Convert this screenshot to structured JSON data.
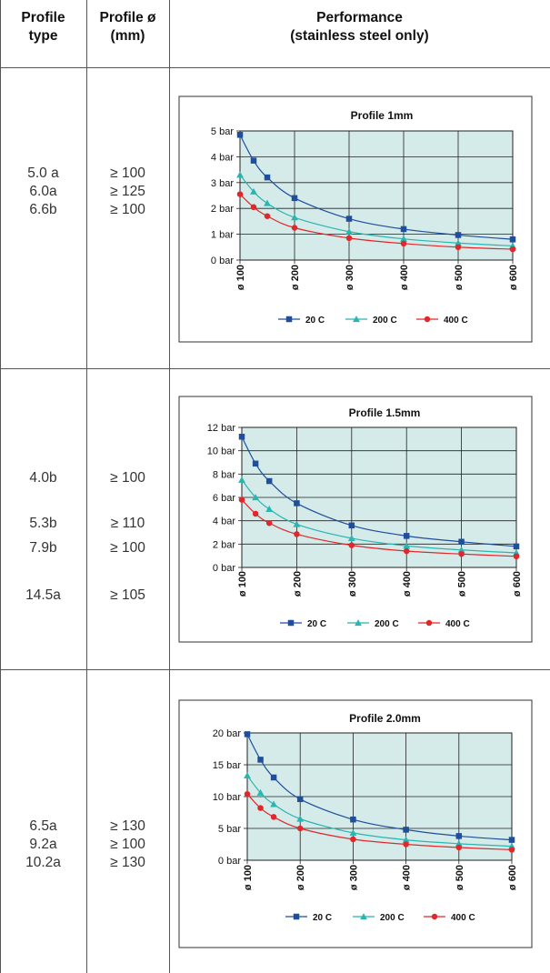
{
  "table": {
    "headers": {
      "profile_type": [
        "Profile",
        "type"
      ],
      "profile_diameter": [
        "Profile ø",
        "(mm)"
      ],
      "performance": [
        "Performance",
        "(stainless steel only)"
      ]
    },
    "rows": [
      {
        "types": [
          "5.0 a",
          "6.0a",
          "6.6b"
        ],
        "diameters": [
          "≥ 100",
          "≥ 125",
          "≥ 100"
        ]
      },
      {
        "types": [
          "4.0b",
          "5.3b",
          "7.9b",
          "14.5a"
        ],
        "diameters": [
          "≥ 100",
          "≥ 110",
          "≥ 100",
          "≥ 105"
        ]
      },
      {
        "types": [
          "6.5a",
          "9.2a",
          "10.2a"
        ],
        "diameters": [
          "≥ 130",
          "≥ 100",
          "≥ 130"
        ]
      }
    ]
  },
  "chart_data": [
    {
      "type": "line",
      "title": "Profile 1mm",
      "x_categories": [
        "ø 100",
        "ø 200",
        "ø 300",
        "ø 400",
        "ø 500",
        "ø 600"
      ],
      "x_range": [
        100,
        600
      ],
      "ylim": [
        0,
        5
      ],
      "y_ticks": [
        0,
        1,
        2,
        3,
        4,
        5
      ],
      "y_tick_labels": [
        "0 bar",
        "1 bar",
        "2 bar",
        "3 bar",
        "4 bar",
        "5 bar"
      ],
      "grid": true,
      "legend_position": "bottom",
      "series": [
        {
          "name": "20 C",
          "color": "#1f4e9c",
          "marker": "square",
          "x": [
            100,
            125,
            150,
            200,
            300,
            400,
            500,
            600
          ],
          "values": [
            4.85,
            3.85,
            3.2,
            2.4,
            1.6,
            1.2,
            0.97,
            0.8
          ]
        },
        {
          "name": "200 C",
          "color": "#2ab5b0",
          "marker": "triangle",
          "x": [
            100,
            125,
            150,
            200,
            300,
            400,
            500,
            600
          ],
          "values": [
            3.3,
            2.65,
            2.2,
            1.65,
            1.1,
            0.82,
            0.66,
            0.55
          ]
        },
        {
          "name": "400 C",
          "color": "#e0282c",
          "marker": "circle",
          "x": [
            100,
            125,
            150,
            200,
            300,
            400,
            500,
            600
          ],
          "values": [
            2.55,
            2.05,
            1.7,
            1.25,
            0.85,
            0.64,
            0.5,
            0.42
          ]
        }
      ]
    },
    {
      "type": "line",
      "title": "Profile 1.5mm",
      "x_categories": [
        "ø 100",
        "ø 200",
        "ø 300",
        "ø 400",
        "ø 500",
        "ø 600"
      ],
      "x_range": [
        100,
        600
      ],
      "ylim": [
        0,
        12
      ],
      "y_ticks": [
        0,
        2,
        4,
        6,
        8,
        10,
        12
      ],
      "y_tick_labels": [
        "0 bar",
        "2 bar",
        "4 bar",
        "6 bar",
        "8 bar",
        "10 bar",
        "12 bar"
      ],
      "grid": true,
      "legend_position": "bottom",
      "series": [
        {
          "name": "20 C",
          "color": "#1f4e9c",
          "marker": "square",
          "x": [
            100,
            125,
            150,
            200,
            300,
            400,
            500,
            600
          ],
          "values": [
            11.2,
            8.9,
            7.4,
            5.5,
            3.6,
            2.7,
            2.2,
            1.8
          ]
        },
        {
          "name": "200 C",
          "color": "#2ab5b0",
          "marker": "triangle",
          "x": [
            100,
            125,
            150,
            200,
            300,
            400,
            500,
            600
          ],
          "values": [
            7.5,
            6.0,
            5.0,
            3.7,
            2.5,
            1.85,
            1.5,
            1.25
          ]
        },
        {
          "name": "400 C",
          "color": "#e0282c",
          "marker": "circle",
          "x": [
            100,
            125,
            150,
            200,
            300,
            400,
            500,
            600
          ],
          "values": [
            5.8,
            4.6,
            3.8,
            2.85,
            1.9,
            1.4,
            1.15,
            0.95
          ]
        }
      ]
    },
    {
      "type": "line",
      "title": "Profile 2.0mm",
      "x_categories": [
        "ø 100",
        "ø 200",
        "ø 300",
        "ø 400",
        "ø 500",
        "ø 600"
      ],
      "x_range": [
        100,
        600
      ],
      "ylim": [
        0,
        20
      ],
      "y_ticks": [
        0,
        5,
        10,
        15,
        20
      ],
      "y_tick_labels": [
        "0 bar",
        "5 bar",
        "10 bar",
        "15 bar",
        "20 bar"
      ],
      "grid": true,
      "legend_position": "bottom",
      "series": [
        {
          "name": "20 C",
          "color": "#1f4e9c",
          "marker": "square",
          "x": [
            100,
            125,
            150,
            200,
            300,
            400,
            500,
            600
          ],
          "values": [
            19.8,
            15.8,
            13.0,
            9.6,
            6.4,
            4.8,
            3.8,
            3.2
          ]
        },
        {
          "name": "200 C",
          "color": "#2ab5b0",
          "marker": "triangle",
          "x": [
            100,
            125,
            150,
            200,
            300,
            400,
            500,
            600
          ],
          "values": [
            13.3,
            10.6,
            8.8,
            6.5,
            4.3,
            3.2,
            2.6,
            2.2
          ]
        },
        {
          "name": "400 C",
          "color": "#e0282c",
          "marker": "circle",
          "x": [
            100,
            125,
            150,
            200,
            300,
            400,
            500,
            600
          ],
          "values": [
            10.4,
            8.2,
            6.8,
            5.0,
            3.3,
            2.5,
            2.0,
            1.65
          ]
        }
      ]
    }
  ]
}
